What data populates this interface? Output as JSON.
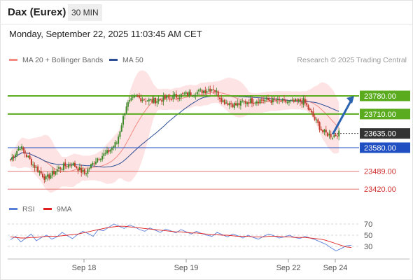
{
  "header": {
    "title": "Dax (Eurex)",
    "interval": "30 MIN",
    "datetime": "Monday, September 22, 2025 11:03:45 AM CET"
  },
  "legend": {
    "ma20_label": "MA 20 + Bollinger Bands",
    "ma50_label": "MA 50",
    "source": "Research © 2025 Trading Central"
  },
  "colors": {
    "bull_candle": "#3f8a2b",
    "bear_candle": "#c0392b",
    "ma20": "#f28b82",
    "ma50": "#2b4e95",
    "bollinger_fill": "#fde3e3",
    "resistance": "#5aab1e",
    "pivot": "#1f4fc1",
    "support": "#e06060",
    "arrow": "#2b63b0",
    "rsi": "#5a80d8",
    "rsi_ma": "#e02020"
  },
  "chart_data": [
    {
      "type": "candlestick",
      "title": "Dax (Eurex)",
      "timeframe": "30 MIN",
      "x_ticks": [
        "Sep 18",
        "Sep 19",
        "Sep 22",
        "Sep 24"
      ],
      "ylim": [
        23380,
        23880
      ],
      "series": [
        {
          "name": "MA 20 + Bollinger Bands"
        },
        {
          "name": "MA 50"
        }
      ],
      "price_shape": [
        [
          0,
          23535
        ],
        [
          6,
          23585
        ],
        [
          14,
          23515
        ],
        [
          22,
          23460
        ],
        [
          30,
          23500
        ],
        [
          38,
          23520
        ],
        [
          46,
          23480
        ],
        [
          54,
          23540
        ],
        [
          60,
          23560
        ],
        [
          66,
          23600
        ],
        [
          72,
          23745
        ],
        [
          78,
          23775
        ],
        [
          88,
          23760
        ],
        [
          96,
          23770
        ],
        [
          104,
          23780
        ],
        [
          112,
          23790
        ],
        [
          120,
          23800
        ],
        [
          126,
          23810
        ],
        [
          132,
          23760
        ],
        [
          140,
          23745
        ],
        [
          148,
          23760
        ],
        [
          156,
          23765
        ],
        [
          166,
          23760
        ],
        [
          174,
          23755
        ],
        [
          182,
          23760
        ],
        [
          188,
          23700
        ],
        [
          194,
          23640
        ],
        [
          200,
          23625
        ],
        [
          204,
          23635
        ]
      ],
      "levels": [
        {
          "value": 23780.0,
          "label": "23780.00",
          "kind": "resistance"
        },
        {
          "value": 23710.0,
          "label": "23710.00",
          "kind": "resistance"
        },
        {
          "value": 23635.0,
          "label": "23635.00",
          "kind": "last"
        },
        {
          "value": 23580.0,
          "label": "23580.00",
          "kind": "pivot"
        },
        {
          "value": 23489.0,
          "label": "23489.00",
          "kind": "support"
        },
        {
          "value": 23420.0,
          "label": "23420.00",
          "kind": "support"
        }
      ],
      "forecast_arrow": {
        "from": 23635,
        "to": 23780,
        "direction": "up"
      }
    },
    {
      "type": "line",
      "title": "RSI",
      "series": [
        {
          "name": "RSI",
          "values": [
            42,
            48,
            38,
            45,
            52,
            40,
            46,
            50,
            43,
            47,
            55,
            49,
            44,
            51,
            57,
            53,
            48,
            60,
            58,
            64,
            70,
            66,
            62,
            68,
            65,
            60,
            57,
            63,
            59,
            55,
            61,
            58,
            54,
            60,
            56,
            52,
            57,
            53,
            50,
            48,
            55,
            51,
            47,
            52,
            49,
            45,
            50,
            46,
            43,
            48,
            52,
            49,
            45,
            47,
            50,
            46,
            44,
            48,
            45,
            42,
            38,
            34,
            28,
            22,
            26,
            31,
            32
          ]
        },
        {
          "name": "9MA",
          "values": [
            47,
            46,
            45,
            45,
            46,
            46,
            47,
            48,
            48,
            48,
            49,
            50,
            51,
            52,
            54,
            56,
            58,
            60,
            62,
            64,
            65,
            66,
            66,
            65,
            64,
            63,
            62,
            61,
            60,
            59,
            58,
            57,
            56,
            56,
            55,
            54,
            54,
            53,
            52,
            51,
            51,
            50,
            50,
            49,
            48,
            48,
            48,
            47,
            47,
            47,
            48,
            48,
            48,
            47,
            47,
            46,
            46,
            46,
            45,
            44,
            43,
            41,
            38,
            35,
            32,
            29,
            28
          ]
        }
      ],
      "y_ticks": [
        70,
        50,
        30
      ],
      "ylim": [
        10,
        80
      ]
    }
  ],
  "price_ticks": {
    "23780": "23780.00",
    "23710": "23710.00",
    "23635": "23635.00",
    "23580": "23580.00",
    "23489": "23489.00",
    "23420": "23420.00"
  },
  "rsi_legend": {
    "rsi_label": "RSI",
    "ma_label": "9MA"
  }
}
